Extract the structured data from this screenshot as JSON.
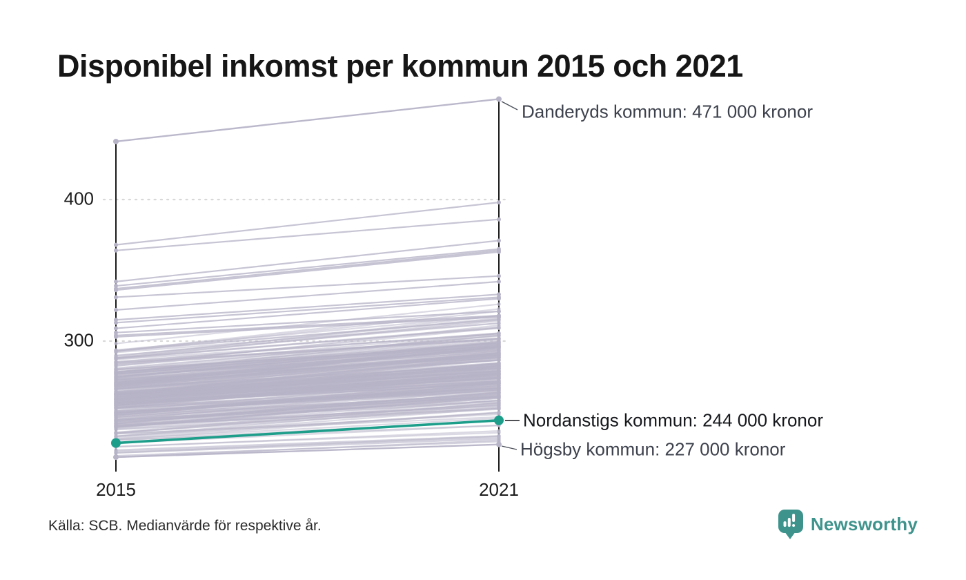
{
  "title": "Disponibel inkomst per kommun 2015 och 2021",
  "source_note": "Källa: SCB. Medianvärde för respektive år.",
  "branding": {
    "name": "Newsworthy",
    "color": "#3e938c",
    "icon": "bar-chart-speech-bubble"
  },
  "colors": {
    "line": "#b7b4c8",
    "highlight": "#1d9e8b",
    "axis": "#1a1a1a",
    "grid": "#d8d8d8",
    "annotation": "#3d414c",
    "annotation_highlight": "#15171b",
    "leader": "#4a4f59"
  },
  "chart_data": {
    "type": "line",
    "subtype": "slope-chart",
    "x_categories": [
      "2015",
      "2021"
    ],
    "values_in": "thousands_of_kronor",
    "yticks": [
      {
        "value": 400,
        "label": "400"
      },
      {
        "value": 300,
        "label": "300"
      }
    ],
    "axis_range": {
      "min": 208,
      "max_2015": 441,
      "max_2021": 471
    },
    "grid": "dotted",
    "labeled": [
      {
        "name": "Danderyds kommun",
        "values": [
          441,
          471
        ],
        "label": "Danderyds kommun: 471 000 kronor",
        "highlight": false
      },
      {
        "name": "Nordanstigs kommun",
        "values": [
          228,
          244
        ],
        "label": "Nordanstigs kommun: 244 000 kronor",
        "highlight": true
      },
      {
        "name": "Högsby kommun",
        "values": [
          218,
          227
        ],
        "label": "Högsby kommun: 227 000 kronor",
        "highlight": false
      }
    ],
    "upper_lines": [
      [
        368,
        398
      ],
      [
        364,
        386
      ],
      [
        342,
        371
      ],
      [
        339,
        365
      ],
      [
        337,
        364
      ],
      [
        336,
        363
      ],
      [
        331,
        346
      ],
      [
        322,
        342
      ],
      [
        315,
        333
      ],
      [
        313,
        331
      ],
      [
        309,
        330
      ],
      [
        306,
        321
      ],
      [
        304,
        318
      ],
      [
        303,
        317
      ]
    ],
    "extra_low_lines": [
      [
        219,
        229
      ],
      [
        218,
        230
      ],
      [
        221,
        231
      ],
      [
        222,
        232
      ],
      [
        223,
        233
      ]
    ],
    "background_band": {
      "description": "remaining Swedish municipalities, unlabeled gray slope lines",
      "count": 255,
      "v2015_min": 220,
      "v2015_max": 302,
      "rise_base": 9,
      "rise_rand": 13,
      "rise_corr": 9,
      "seed": 42
    }
  }
}
